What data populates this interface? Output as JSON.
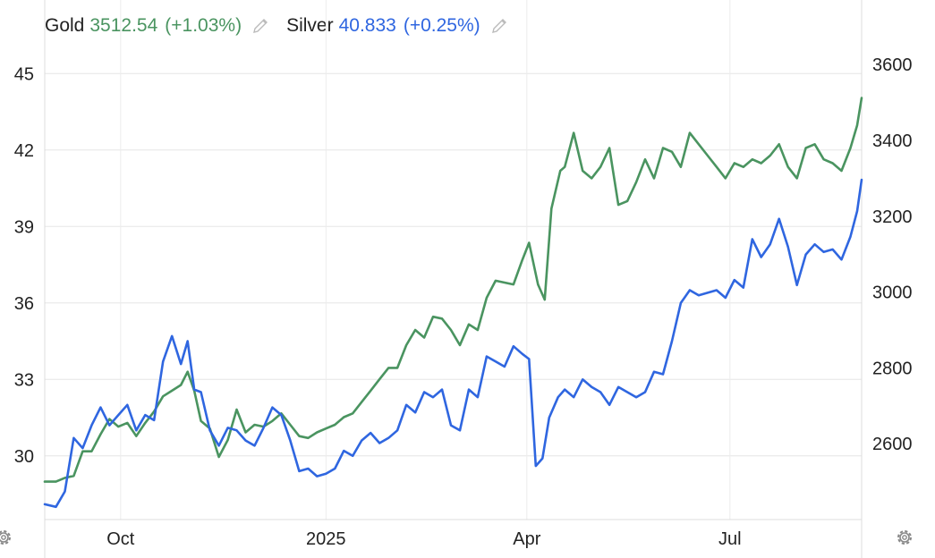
{
  "legend": {
    "gold": {
      "name": "Gold",
      "price": "3512.54",
      "change": "(+1.03%)",
      "color": "#4a9460"
    },
    "silver": {
      "name": "Silver",
      "price": "40.833",
      "change": "(+0.25%)",
      "color": "#2f66e0"
    },
    "edit_icon": "pencil-icon"
  },
  "settings_icon": "gear-icon",
  "chart_data": {
    "type": "line",
    "title": "",
    "x_tick_labels": [
      "Oct",
      "2025",
      "Apr",
      "Jul"
    ],
    "x_tick_dates": [
      "2024-10-01",
      "2025-01-01",
      "2025-04-01",
      "2025-07-01"
    ],
    "x_range": [
      "2024-08-28",
      "2025-08-29"
    ],
    "y_left": {
      "series": "Silver",
      "ticks": [
        30,
        33,
        36,
        39,
        42,
        45
      ],
      "ylim": [
        27.5,
        45.5
      ]
    },
    "y_right": {
      "series": "Gold",
      "ticks": [
        2600,
        2800,
        3000,
        3200,
        3400,
        3600
      ],
      "ylim": [
        2400,
        3610
      ]
    },
    "grid": true,
    "series": [
      {
        "name": "Gold",
        "axis": "right",
        "color": "#4a9460",
        "points": [
          [
            "2024-08-28",
            2500
          ],
          [
            "2024-09-02",
            2500
          ],
          [
            "2024-09-06",
            2510
          ],
          [
            "2024-09-10",
            2515
          ],
          [
            "2024-09-14",
            2580
          ],
          [
            "2024-09-18",
            2580
          ],
          [
            "2024-09-22",
            2625
          ],
          [
            "2024-09-26",
            2665
          ],
          [
            "2024-09-30",
            2645
          ],
          [
            "2024-10-04",
            2655
          ],
          [
            "2024-10-08",
            2620
          ],
          [
            "2024-10-12",
            2655
          ],
          [
            "2024-10-16",
            2685
          ],
          [
            "2024-10-20",
            2725
          ],
          [
            "2024-10-24",
            2740
          ],
          [
            "2024-10-28",
            2755
          ],
          [
            "2024-10-31",
            2790
          ],
          [
            "2024-11-03",
            2740
          ],
          [
            "2024-11-06",
            2660
          ],
          [
            "2024-11-10",
            2640
          ],
          [
            "2024-11-14",
            2565
          ],
          [
            "2024-11-18",
            2610
          ],
          [
            "2024-11-22",
            2690
          ],
          [
            "2024-11-26",
            2630
          ],
          [
            "2024-11-30",
            2650
          ],
          [
            "2024-12-04",
            2645
          ],
          [
            "2024-12-08",
            2660
          ],
          [
            "2024-12-12",
            2680
          ],
          [
            "2024-12-16",
            2650
          ],
          [
            "2024-12-20",
            2620
          ],
          [
            "2024-12-24",
            2615
          ],
          [
            "2024-12-28",
            2630
          ],
          [
            "2025-01-01",
            2640
          ],
          [
            "2025-01-05",
            2650
          ],
          [
            "2025-01-09",
            2670
          ],
          [
            "2025-01-13",
            2680
          ],
          [
            "2025-01-17",
            2710
          ],
          [
            "2025-01-21",
            2740
          ],
          [
            "2025-01-25",
            2770
          ],
          [
            "2025-01-29",
            2800
          ],
          [
            "2025-02-02",
            2800
          ],
          [
            "2025-02-06",
            2860
          ],
          [
            "2025-02-10",
            2900
          ],
          [
            "2025-02-14",
            2880
          ],
          [
            "2025-02-18",
            2935
          ],
          [
            "2025-02-22",
            2930
          ],
          [
            "2025-02-26",
            2900
          ],
          [
            "2025-03-02",
            2860
          ],
          [
            "2025-03-06",
            2915
          ],
          [
            "2025-03-10",
            2900
          ],
          [
            "2025-03-14",
            2985
          ],
          [
            "2025-03-18",
            3030
          ],
          [
            "2025-03-22",
            3025
          ],
          [
            "2025-03-26",
            3020
          ],
          [
            "2025-03-30",
            3085
          ],
          [
            "2025-04-02",
            3130
          ],
          [
            "2025-04-06",
            3020
          ],
          [
            "2025-04-09",
            2980
          ],
          [
            "2025-04-12",
            3220
          ],
          [
            "2025-04-16",
            3320
          ],
          [
            "2025-04-18",
            3330
          ],
          [
            "2025-04-22",
            3420
          ],
          [
            "2025-04-26",
            3320
          ],
          [
            "2025-04-30",
            3300
          ],
          [
            "2025-05-04",
            3330
          ],
          [
            "2025-05-08",
            3380
          ],
          [
            "2025-05-12",
            3230
          ],
          [
            "2025-05-16",
            3240
          ],
          [
            "2025-05-20",
            3290
          ],
          [
            "2025-05-24",
            3350
          ],
          [
            "2025-05-28",
            3300
          ],
          [
            "2025-06-01",
            3380
          ],
          [
            "2025-06-05",
            3370
          ],
          [
            "2025-06-09",
            3330
          ],
          [
            "2025-06-13",
            3420
          ],
          [
            "2025-06-17",
            3390
          ],
          [
            "2025-06-21",
            3360
          ],
          [
            "2025-06-25",
            3330
          ],
          [
            "2025-06-29",
            3300
          ],
          [
            "2025-07-03",
            3340
          ],
          [
            "2025-07-07",
            3330
          ],
          [
            "2025-07-11",
            3350
          ],
          [
            "2025-07-15",
            3340
          ],
          [
            "2025-07-19",
            3360
          ],
          [
            "2025-07-23",
            3390
          ],
          [
            "2025-07-27",
            3330
          ],
          [
            "2025-07-31",
            3300
          ],
          [
            "2025-08-04",
            3380
          ],
          [
            "2025-08-08",
            3390
          ],
          [
            "2025-08-12",
            3350
          ],
          [
            "2025-08-16",
            3340
          ],
          [
            "2025-08-20",
            3320
          ],
          [
            "2025-08-24",
            3380
          ],
          [
            "2025-08-27",
            3440
          ],
          [
            "2025-08-29",
            3512
          ]
        ]
      },
      {
        "name": "Silver",
        "axis": "left",
        "color": "#2f66e0",
        "points": [
          [
            "2024-08-28",
            28.1
          ],
          [
            "2024-09-02",
            28.0
          ],
          [
            "2024-09-06",
            28.6
          ],
          [
            "2024-09-10",
            30.7
          ],
          [
            "2024-09-14",
            30.3
          ],
          [
            "2024-09-18",
            31.2
          ],
          [
            "2024-09-22",
            31.9
          ],
          [
            "2024-09-26",
            31.2
          ],
          [
            "2024-09-30",
            31.6
          ],
          [
            "2024-10-04",
            32.0
          ],
          [
            "2024-10-08",
            31.0
          ],
          [
            "2024-10-12",
            31.6
          ],
          [
            "2024-10-16",
            31.4
          ],
          [
            "2024-10-20",
            33.7
          ],
          [
            "2024-10-24",
            34.7
          ],
          [
            "2024-10-28",
            33.6
          ],
          [
            "2024-10-31",
            34.5
          ],
          [
            "2024-11-03",
            32.6
          ],
          [
            "2024-11-06",
            32.5
          ],
          [
            "2024-11-10",
            31.0
          ],
          [
            "2024-11-14",
            30.4
          ],
          [
            "2024-11-18",
            31.1
          ],
          [
            "2024-11-22",
            31.0
          ],
          [
            "2024-11-26",
            30.6
          ],
          [
            "2024-11-30",
            30.4
          ],
          [
            "2024-12-04",
            31.1
          ],
          [
            "2024-12-08",
            31.9
          ],
          [
            "2024-12-12",
            31.6
          ],
          [
            "2024-12-16",
            30.6
          ],
          [
            "2024-12-20",
            29.4
          ],
          [
            "2024-12-24",
            29.5
          ],
          [
            "2024-12-28",
            29.2
          ],
          [
            "2025-01-01",
            29.3
          ],
          [
            "2025-01-05",
            29.5
          ],
          [
            "2025-01-09",
            30.2
          ],
          [
            "2025-01-13",
            30.0
          ],
          [
            "2025-01-17",
            30.6
          ],
          [
            "2025-01-21",
            30.9
          ],
          [
            "2025-01-25",
            30.5
          ],
          [
            "2025-01-29",
            30.7
          ],
          [
            "2025-02-02",
            31.0
          ],
          [
            "2025-02-06",
            32.0
          ],
          [
            "2025-02-10",
            31.7
          ],
          [
            "2025-02-14",
            32.5
          ],
          [
            "2025-02-18",
            32.3
          ],
          [
            "2025-02-22",
            32.6
          ],
          [
            "2025-02-26",
            31.2
          ],
          [
            "2025-03-02",
            31.0
          ],
          [
            "2025-03-06",
            32.6
          ],
          [
            "2025-03-10",
            32.3
          ],
          [
            "2025-03-14",
            33.9
          ],
          [
            "2025-03-18",
            33.7
          ],
          [
            "2025-03-22",
            33.5
          ],
          [
            "2025-03-26",
            34.3
          ],
          [
            "2025-03-30",
            34.0
          ],
          [
            "2025-04-02",
            33.8
          ],
          [
            "2025-04-05",
            29.6
          ],
          [
            "2025-04-08",
            29.9
          ],
          [
            "2025-04-11",
            31.5
          ],
          [
            "2025-04-15",
            32.3
          ],
          [
            "2025-04-18",
            32.6
          ],
          [
            "2025-04-22",
            32.3
          ],
          [
            "2025-04-26",
            33.0
          ],
          [
            "2025-04-30",
            32.7
          ],
          [
            "2025-05-04",
            32.5
          ],
          [
            "2025-05-08",
            32.0
          ],
          [
            "2025-05-12",
            32.7
          ],
          [
            "2025-05-16",
            32.5
          ],
          [
            "2025-05-20",
            32.3
          ],
          [
            "2025-05-24",
            32.5
          ],
          [
            "2025-05-28",
            33.3
          ],
          [
            "2025-06-01",
            33.2
          ],
          [
            "2025-06-05",
            34.5
          ],
          [
            "2025-06-09",
            36.0
          ],
          [
            "2025-06-13",
            36.5
          ],
          [
            "2025-06-17",
            36.3
          ],
          [
            "2025-06-21",
            36.4
          ],
          [
            "2025-06-25",
            36.5
          ],
          [
            "2025-06-29",
            36.2
          ],
          [
            "2025-07-03",
            36.9
          ],
          [
            "2025-07-07",
            36.6
          ],
          [
            "2025-07-11",
            38.5
          ],
          [
            "2025-07-15",
            37.8
          ],
          [
            "2025-07-19",
            38.3
          ],
          [
            "2025-07-23",
            39.3
          ],
          [
            "2025-07-27",
            38.2
          ],
          [
            "2025-07-31",
            36.7
          ],
          [
            "2025-08-04",
            37.9
          ],
          [
            "2025-08-08",
            38.3
          ],
          [
            "2025-08-12",
            38.0
          ],
          [
            "2025-08-16",
            38.1
          ],
          [
            "2025-08-20",
            37.7
          ],
          [
            "2025-08-24",
            38.6
          ],
          [
            "2025-08-27",
            39.6
          ],
          [
            "2025-08-29",
            40.833
          ]
        ]
      }
    ]
  }
}
